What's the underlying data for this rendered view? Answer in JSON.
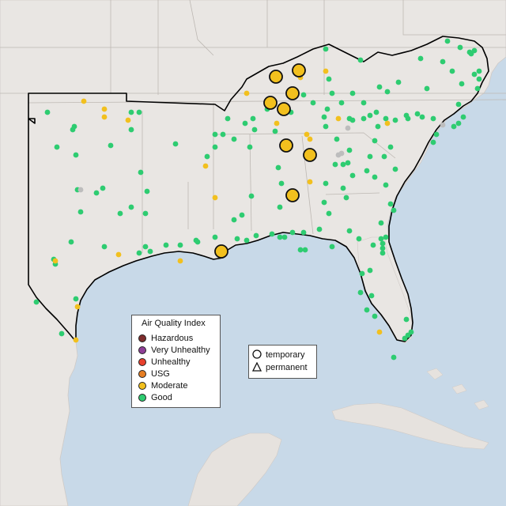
{
  "legend": {
    "title": "Air Quality Index",
    "categories": [
      {
        "label": "Hazardous",
        "color": "#7e2d2d"
      },
      {
        "label": "Very Unhealthy",
        "color": "#8f3f97"
      },
      {
        "label": "Unhealthy",
        "color": "#e8402d"
      },
      {
        "label": "USG",
        "color": "#e67e22"
      },
      {
        "label": "Moderate",
        "color": "#f2c01e"
      },
      {
        "label": "Good",
        "color": "#2ecc71"
      }
    ]
  },
  "monitor_types": {
    "temporary": "temporary",
    "permanent": "permanent"
  },
  "colors": {
    "land": "#e9e6e3",
    "water": "#c8d9e8",
    "good": "#2ecc71",
    "moderate": "#f2c01e",
    "no_data": "#bdbdbd",
    "region_outline": "#000000"
  }
}
